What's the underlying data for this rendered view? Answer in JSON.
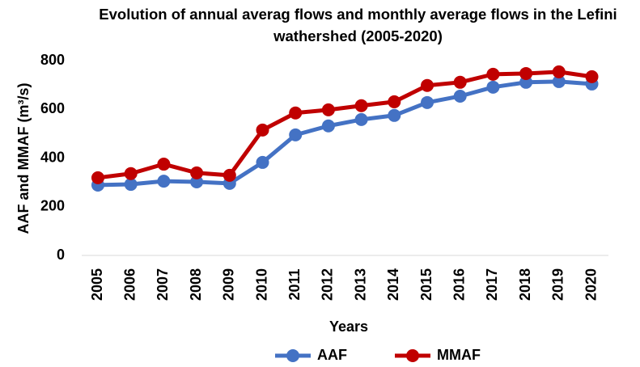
{
  "chart_data": {
    "type": "line",
    "title": "Evolution of annual averag flows and monthly average flows in the Lefini wathershed (2005-2020)",
    "x_label": "Years",
    "y_label": "AAF and MMAF (m³/s)",
    "categories": [
      "2005",
      "2006",
      "2007",
      "2008",
      "2009",
      "2010",
      "2011",
      "2012",
      "2013",
      "2014",
      "2015",
      "2016",
      "2017",
      "2018",
      "2019",
      "2020"
    ],
    "series": [
      {
        "name": "AAF",
        "color": "#4472c4",
        "values": [
          289,
          292,
          305,
          302,
          296,
          382,
          495,
          532,
          558,
          575,
          628,
          654,
          691,
          711,
          714,
          704
        ]
      },
      {
        "name": "MMAF",
        "color": "#c00000",
        "values": [
          319,
          336,
          375,
          339,
          329,
          515,
          585,
          598,
          615,
          631,
          698,
          711,
          744,
          747,
          754,
          734
        ]
      }
    ],
    "ylim": [
      0,
      800
    ],
    "yticks": [
      0,
      200,
      400,
      600,
      800
    ],
    "grid": false,
    "legend": "bottom"
  }
}
